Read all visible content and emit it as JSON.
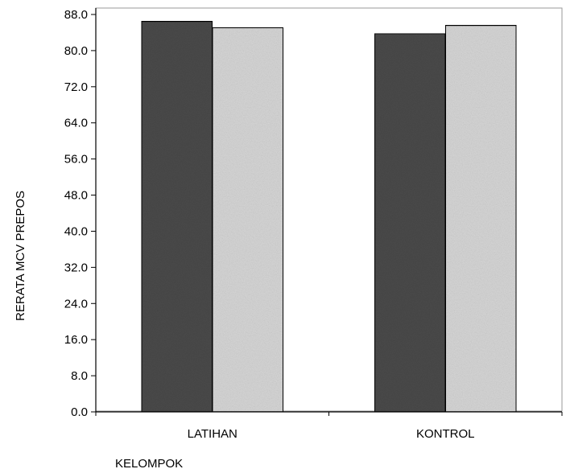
{
  "chart_data": {
    "type": "bar",
    "categories": [
      "LATIHAN",
      "KONTROL"
    ],
    "series": [
      {
        "values": [
          86.5,
          83.8
        ],
        "color": "#4a4a4a"
      },
      {
        "values": [
          85.1,
          85.6
        ],
        "color": "#d6d6d6"
      }
    ],
    "xlabel": "KELOMPOK",
    "ylabel": "RERATA MCV PREPOS",
    "ylim": [
      0,
      88
    ],
    "yticks": [
      "0.0",
      "8.0",
      "16.0",
      "24.0",
      "32.0",
      "40.0",
      "48.0",
      "56.0",
      "64.0",
      "72.0",
      "80.0",
      "88.0"
    ],
    "grid": false,
    "legend": "none"
  }
}
